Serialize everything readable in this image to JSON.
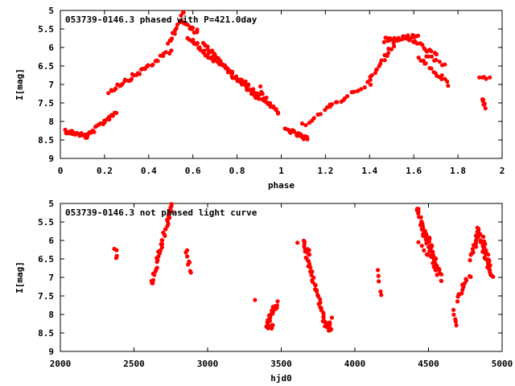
{
  "chart_data": [
    {
      "type": "scatter",
      "title": "053739-0146.3 phased with P=421.0day",
      "xlabel": "phase",
      "ylabel": "I[mag]",
      "xlim": [
        0,
        2
      ],
      "ylim": [
        9,
        5
      ],
      "y_inverted": true,
      "xticks": [
        "0",
        "0.2",
        "0.4",
        "0.6",
        "0.8",
        "1",
        "1.2",
        "1.4",
        "1.6",
        "1.8",
        "2"
      ],
      "yticks": [
        "5",
        "5.5",
        "6",
        "6.5",
        "7",
        "7.5",
        "8",
        "8.5",
        "9"
      ],
      "marker_color": "#ff0000",
      "grid": false,
      "segments": [
        {
          "x0": 0.02,
          "x1": 0.12,
          "y0": 8.25,
          "y1": 8.4,
          "n": 22
        },
        {
          "x0": 0.12,
          "x1": 0.25,
          "y0": 8.4,
          "y1": 7.75,
          "n": 24
        },
        {
          "x0": 0.22,
          "x1": 0.4,
          "y0": 7.2,
          "y1": 6.5,
          "n": 26
        },
        {
          "x0": 0.4,
          "x1": 0.5,
          "y0": 6.5,
          "y1": 6.1,
          "n": 12
        },
        {
          "x0": 0.49,
          "x1": 0.56,
          "y0": 5.9,
          "y1": 5.05,
          "n": 14
        },
        {
          "x0": 0.55,
          "x1": 0.62,
          "y0": 5.3,
          "y1": 5.6,
          "n": 12
        },
        {
          "x0": 0.58,
          "x1": 0.7,
          "y0": 5.7,
          "y1": 6.4,
          "n": 22
        },
        {
          "x0": 0.65,
          "x1": 0.82,
          "y0": 5.9,
          "y1": 7.0,
          "n": 34
        },
        {
          "x0": 0.72,
          "x1": 0.9,
          "y0": 6.4,
          "y1": 7.4,
          "n": 30
        },
        {
          "x0": 0.82,
          "x1": 0.98,
          "y0": 6.9,
          "y1": 7.7,
          "n": 24
        },
        {
          "x0": 0.9,
          "x1": 0.98,
          "y0": 7.1,
          "y1": 7.8,
          "n": 10
        },
        {
          "x0": 1.02,
          "x1": 1.12,
          "y0": 8.2,
          "y1": 8.5,
          "n": 22
        },
        {
          "x0": 1.1,
          "x1": 1.22,
          "y0": 8.1,
          "y1": 7.6,
          "n": 10
        },
        {
          "x0": 1.22,
          "x1": 1.4,
          "y0": 7.6,
          "y1": 6.95,
          "n": 16
        },
        {
          "x0": 1.4,
          "x1": 1.52,
          "y0": 6.9,
          "y1": 5.8,
          "n": 18
        },
        {
          "x0": 1.46,
          "x1": 1.62,
          "y0": 5.8,
          "y1": 5.7,
          "n": 24
        },
        {
          "x0": 1.56,
          "x1": 1.7,
          "y0": 5.7,
          "y1": 6.2,
          "n": 18
        },
        {
          "x0": 1.62,
          "x1": 1.76,
          "y0": 6.3,
          "y1": 7.0,
          "n": 16
        },
        {
          "x0": 1.66,
          "x1": 1.74,
          "y0": 6.2,
          "y1": 6.5,
          "n": 8
        },
        {
          "x0": 1.9,
          "x1": 1.94,
          "y0": 6.8,
          "y1": 6.85,
          "n": 5
        },
        {
          "x0": 1.91,
          "x1": 1.93,
          "y0": 7.35,
          "y1": 7.6,
          "n": 6
        }
      ]
    },
    {
      "type": "scatter",
      "title": "053739-0146.3 not phased light curve",
      "xlabel": "hjd0",
      "ylabel": "I[mag]",
      "xlim": [
        2000,
        5000
      ],
      "ylim": [
        9,
        5
      ],
      "y_inverted": true,
      "xticks": [
        "2000",
        "2500",
        "3000",
        "3500",
        "4000",
        "4500",
        "5000"
      ],
      "yticks": [
        "5",
        "5.5",
        "6",
        "6.5",
        "7",
        "7.5",
        "8",
        "8.5",
        "9"
      ],
      "marker_color": "#ff0000",
      "grid": false,
      "segments": [
        {
          "x0": 2375,
          "x1": 2385,
          "y0": 6.25,
          "y1": 6.45,
          "n": 4
        },
        {
          "x0": 2620,
          "x1": 2760,
          "y0": 7.2,
          "y1": 5.0,
          "n": 40
        },
        {
          "x0": 2855,
          "x1": 2880,
          "y0": 6.3,
          "y1": 6.85,
          "n": 8
        },
        {
          "x0": 3325,
          "x1": 3328,
          "y0": 7.58,
          "y1": 7.6,
          "n": 1
        },
        {
          "x0": 3400,
          "x1": 3470,
          "y0": 8.3,
          "y1": 7.7,
          "n": 28
        },
        {
          "x0": 3410,
          "x1": 3440,
          "y0": 8.4,
          "y1": 8.3,
          "n": 8
        },
        {
          "x0": 3605,
          "x1": 3610,
          "y0": 6.05,
          "y1": 6.05,
          "n": 1
        },
        {
          "x0": 3650,
          "x1": 3690,
          "y0": 6.0,
          "y1": 6.4,
          "n": 10
        },
        {
          "x0": 3665,
          "x1": 3790,
          "y0": 6.3,
          "y1": 8.1,
          "n": 34
        },
        {
          "x0": 3790,
          "x1": 3840,
          "y0": 8.2,
          "y1": 8.45,
          "n": 14
        },
        {
          "x0": 3825,
          "x1": 3845,
          "y0": 8.3,
          "y1": 8.1,
          "n": 4
        },
        {
          "x0": 4165,
          "x1": 4175,
          "y0": 6.8,
          "y1": 7.5,
          "n": 5
        },
        {
          "x0": 4420,
          "x1": 4470,
          "y0": 5.05,
          "y1": 5.9,
          "n": 18
        },
        {
          "x0": 4450,
          "x1": 4560,
          "y0": 5.5,
          "y1": 6.9,
          "n": 30
        },
        {
          "x0": 4490,
          "x1": 4590,
          "y0": 5.8,
          "y1": 7.1,
          "n": 22
        },
        {
          "x0": 4430,
          "x1": 4500,
          "y0": 6.1,
          "y1": 6.4,
          "n": 5
        },
        {
          "x0": 4670,
          "x1": 4690,
          "y0": 7.85,
          "y1": 8.35,
          "n": 5
        },
        {
          "x0": 4690,
          "x1": 4780,
          "y0": 7.6,
          "y1": 6.95,
          "n": 14
        },
        {
          "x0": 4790,
          "x1": 4845,
          "y0": 6.5,
          "y1": 5.7,
          "n": 16
        },
        {
          "x0": 4830,
          "x1": 4930,
          "y0": 5.7,
          "y1": 7.0,
          "n": 32
        },
        {
          "x0": 4855,
          "x1": 4915,
          "y0": 5.8,
          "y1": 6.7,
          "n": 14
        }
      ]
    }
  ]
}
